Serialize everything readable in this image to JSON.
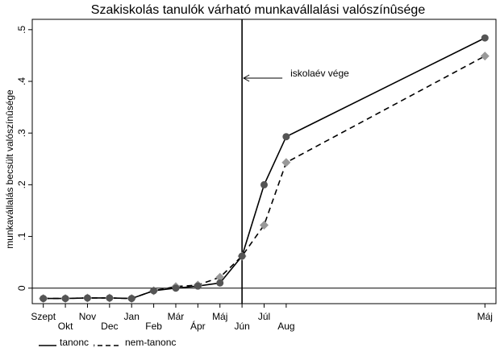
{
  "chart_data": {
    "type": "line",
    "title": "Szakiskolás tanulók várható munkavállalási valószínûsége",
    "ylabel": "munkavállalás becsült valószínûsége",
    "xlabel": "",
    "ylim": [
      -0.03,
      0.52
    ],
    "y_ticks": [
      0,
      0.1,
      0.2,
      0.3,
      0.4,
      0.5
    ],
    "y_tick_labels": [
      "0",
      ".1",
      ".2",
      ".3",
      ".4",
      ".5"
    ],
    "x_tick_labels": [
      "Szept",
      "Okt",
      "Nov",
      "Dec",
      "Jan",
      "Feb",
      "Már",
      "Ápr",
      "Máj",
      "Jún",
      "Júl",
      "Aug",
      "Máj"
    ],
    "x_tick_positions": [
      0,
      1,
      2,
      3,
      4,
      5,
      6,
      7,
      8,
      9,
      10,
      11,
      20
    ],
    "xlim": [
      -0.5,
      20.5
    ],
    "grid": false,
    "legend_position": "bottom-left",
    "vline": {
      "x": 9,
      "label": "iskolaév vége"
    },
    "series": [
      {
        "name": "tanonc",
        "style": "solid",
        "marker": "circle",
        "color": "#000000",
        "marker_color": "#555555",
        "x": [
          0,
          1,
          2,
          3,
          4,
          5,
          6,
          7,
          8,
          9,
          10,
          11,
          20
        ],
        "values": [
          -0.02,
          -0.02,
          -0.019,
          -0.019,
          -0.02,
          -0.005,
          0.0,
          0.004,
          0.01,
          0.062,
          0.2,
          0.293,
          0.484
        ]
      },
      {
        "name": "nem-tanonc",
        "style": "dashed",
        "marker": "diamond",
        "color": "#000000",
        "marker_color": "#999999",
        "x": [
          0,
          1,
          2,
          3,
          4,
          5,
          6,
          7,
          8,
          9,
          10,
          11,
          20
        ],
        "values": [
          -0.02,
          -0.02,
          -0.019,
          -0.019,
          -0.02,
          -0.005,
          0.003,
          0.006,
          0.021,
          0.062,
          0.122,
          0.243,
          0.449
        ]
      }
    ]
  }
}
